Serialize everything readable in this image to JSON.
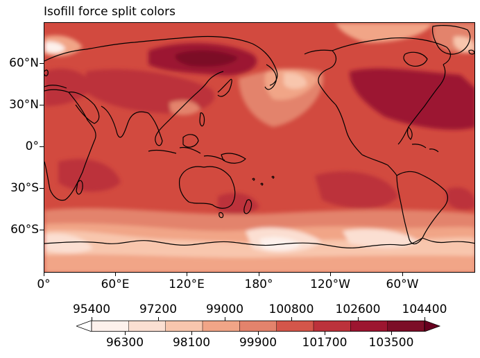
{
  "title": "Isofill force split colors",
  "map": {
    "projection": "PlateCarree, central longitude 180",
    "lat_labels": [
      "60°N",
      "30°N",
      "0°",
      "30°S",
      "60°S"
    ],
    "lon_labels": [
      "0°",
      "60°E",
      "120°E",
      "180°",
      "120°W",
      "60°W"
    ],
    "background_level_color": "#d24a3f",
    "coastline_color": "#000000"
  },
  "colorbar": {
    "levels": [
      95400,
      96300,
      97200,
      98100,
      99000,
      99900,
      100800,
      101700,
      102600,
      103500,
      104400
    ],
    "top_labels": [
      "95400",
      "97200",
      "99000",
      "100800",
      "102600",
      "104400"
    ],
    "bottom_labels": [
      "96300",
      "98100",
      "99900",
      "101700",
      "103500"
    ],
    "colors": [
      "#fdf1ec",
      "#fbdfd2",
      "#f8c6ad",
      "#f1a587",
      "#e3836c",
      "#d4564a",
      "#bc323b",
      "#9c1530",
      "#7c0d27"
    ],
    "extend": "both"
  }
}
